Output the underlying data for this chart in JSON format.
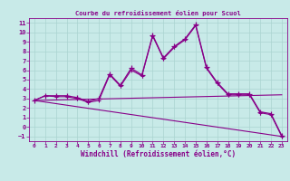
{
  "title": "Courbe du refroidissement éolien pour Scuol",
  "xlabel": "Windchill (Refroidissement éolien,°C)",
  "background_color": "#c8eae8",
  "line_color": "#880088",
  "xlim": [
    -0.5,
    23.5
  ],
  "ylim": [
    -1.5,
    11.5
  ],
  "xticks": [
    0,
    1,
    2,
    3,
    4,
    5,
    6,
    7,
    8,
    9,
    10,
    11,
    12,
    13,
    14,
    15,
    16,
    17,
    18,
    19,
    20,
    21,
    22,
    23
  ],
  "yticks": [
    -1,
    0,
    1,
    2,
    3,
    4,
    5,
    6,
    7,
    8,
    9,
    10,
    11
  ],
  "line1_x": [
    0,
    1,
    2,
    3,
    4,
    5,
    6,
    7,
    8,
    9,
    10,
    11,
    12,
    13,
    14,
    15,
    16,
    17,
    18,
    19,
    20,
    21,
    22,
    23
  ],
  "line1_y": [
    2.8,
    3.3,
    3.3,
    3.3,
    3.1,
    2.7,
    3.0,
    5.6,
    4.4,
    6.2,
    5.5,
    9.7,
    7.3,
    8.5,
    9.3,
    10.8,
    6.3,
    4.7,
    3.5,
    3.5,
    3.5,
    1.6,
    1.4,
    -0.9
  ],
  "line2_x": [
    0,
    1,
    2,
    3,
    4,
    5,
    6,
    7,
    8,
    9,
    10,
    11,
    12,
    13,
    14,
    15,
    16,
    17,
    18,
    19,
    20,
    21,
    22,
    23
  ],
  "line2_y": [
    2.8,
    3.3,
    3.2,
    3.2,
    3.0,
    2.6,
    2.8,
    5.5,
    4.3,
    6.0,
    5.4,
    9.6,
    7.2,
    8.4,
    9.2,
    10.7,
    6.2,
    4.6,
    3.4,
    3.4,
    3.4,
    1.5,
    1.3,
    -1.0
  ],
  "line3_x": [
    0,
    23
  ],
  "line3_y": [
    2.8,
    -1.0
  ],
  "line4_x": [
    0,
    23
  ],
  "line4_y": [
    2.8,
    3.4
  ],
  "grid_color": "#aad4d0",
  "font_color": "#880088"
}
